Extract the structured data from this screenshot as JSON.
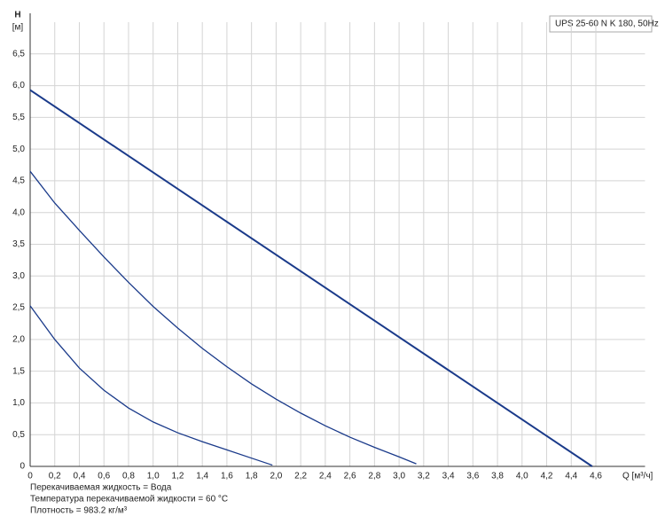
{
  "chart_data": {
    "type": "line",
    "legend_text": "UPS 25-60 N K 180, 50Hz",
    "y_label": "H",
    "y_unit": "[м]",
    "x_label": "Q [м³/ч]",
    "notes": [
      "Перекачиваемая жидкость = Вода",
      "Температура перекачиваемой жидкости = 60 °C",
      "Плотность = 983.2 кг/м³"
    ],
    "xlim": [
      0,
      5.0
    ],
    "ylim": [
      0,
      7.0
    ],
    "grid": true,
    "xticks": [
      0,
      {
        "value": 0.2,
        "label": "0,2"
      },
      {
        "value": 0.4,
        "label": "0,4"
      },
      {
        "value": 0.6,
        "label": "0,6"
      },
      {
        "value": 0.8,
        "label": "0,8"
      },
      {
        "value": 1.0,
        "label": "1,0"
      },
      {
        "value": 1.2,
        "label": "1,2"
      },
      {
        "value": 1.4,
        "label": "1,4"
      },
      {
        "value": 1.6,
        "label": "1,6"
      },
      {
        "value": 1.8,
        "label": "1,8"
      },
      {
        "value": 2.0,
        "label": "2,0"
      },
      {
        "value": 2.2,
        "label": "2,2"
      },
      {
        "value": 2.4,
        "label": "2,4"
      },
      {
        "value": 2.6,
        "label": "2,6"
      },
      {
        "value": 2.8,
        "label": "2,8"
      },
      {
        "value": 3.0,
        "label": "3,0"
      },
      {
        "value": 3.2,
        "label": "3,2"
      },
      {
        "value": 3.4,
        "label": "3,4"
      },
      {
        "value": 3.6,
        "label": "3,6"
      },
      {
        "value": 3.8,
        "label": "3,8"
      },
      {
        "value": 4.0,
        "label": "4,0"
      },
      {
        "value": 4.2,
        "label": "4,2"
      },
      {
        "value": 4.4,
        "label": "4,4"
      },
      {
        "value": 4.6,
        "label": "4,6"
      }
    ],
    "yticks": [
      0,
      {
        "value": 0.5,
        "label": "0,5"
      },
      {
        "value": 1.0,
        "label": "1,0"
      },
      {
        "value": 1.5,
        "label": "1,5"
      },
      {
        "value": 2.0,
        "label": "2,0"
      },
      {
        "value": 2.5,
        "label": "2,5"
      },
      {
        "value": 3.0,
        "label": "3,0"
      },
      {
        "value": 3.5,
        "label": "3,5"
      },
      {
        "value": 4.0,
        "label": "4,0"
      },
      {
        "value": 4.5,
        "label": "4,5"
      },
      {
        "value": 5.0,
        "label": "5,0"
      },
      {
        "value": 5.5,
        "label": "5,5"
      },
      {
        "value": 6.0,
        "label": "6,0"
      },
      {
        "value": 6.5,
        "label": "6,5"
      }
    ],
    "series": [
      {
        "color": "#1a3a8a",
        "width": 2,
        "x": [
          0,
          4.57
        ],
        "values": [
          5.93,
          0
        ]
      },
      {
        "color": "#1a3a8a",
        "width": 1.3,
        "x": [
          0,
          0.2,
          0.4,
          0.6,
          0.8,
          1.0,
          1.2,
          1.4,
          1.6,
          1.8,
          2.0,
          2.2,
          2.4,
          2.6,
          2.8,
          3.0,
          3.14
        ],
        "values": [
          4.65,
          4.15,
          3.72,
          3.3,
          2.9,
          2.52,
          2.18,
          1.86,
          1.57,
          1.3,
          1.06,
          0.84,
          0.64,
          0.46,
          0.3,
          0.15,
          0.04
        ]
      },
      {
        "color": "#1a3a8a",
        "width": 1.3,
        "x": [
          0,
          0.2,
          0.4,
          0.6,
          0.8,
          1.0,
          1.2,
          1.4,
          1.6,
          1.8,
          1.97
        ],
        "values": [
          2.53,
          2.0,
          1.55,
          1.2,
          0.92,
          0.7,
          0.53,
          0.39,
          0.26,
          0.13,
          0.02
        ]
      }
    ]
  }
}
